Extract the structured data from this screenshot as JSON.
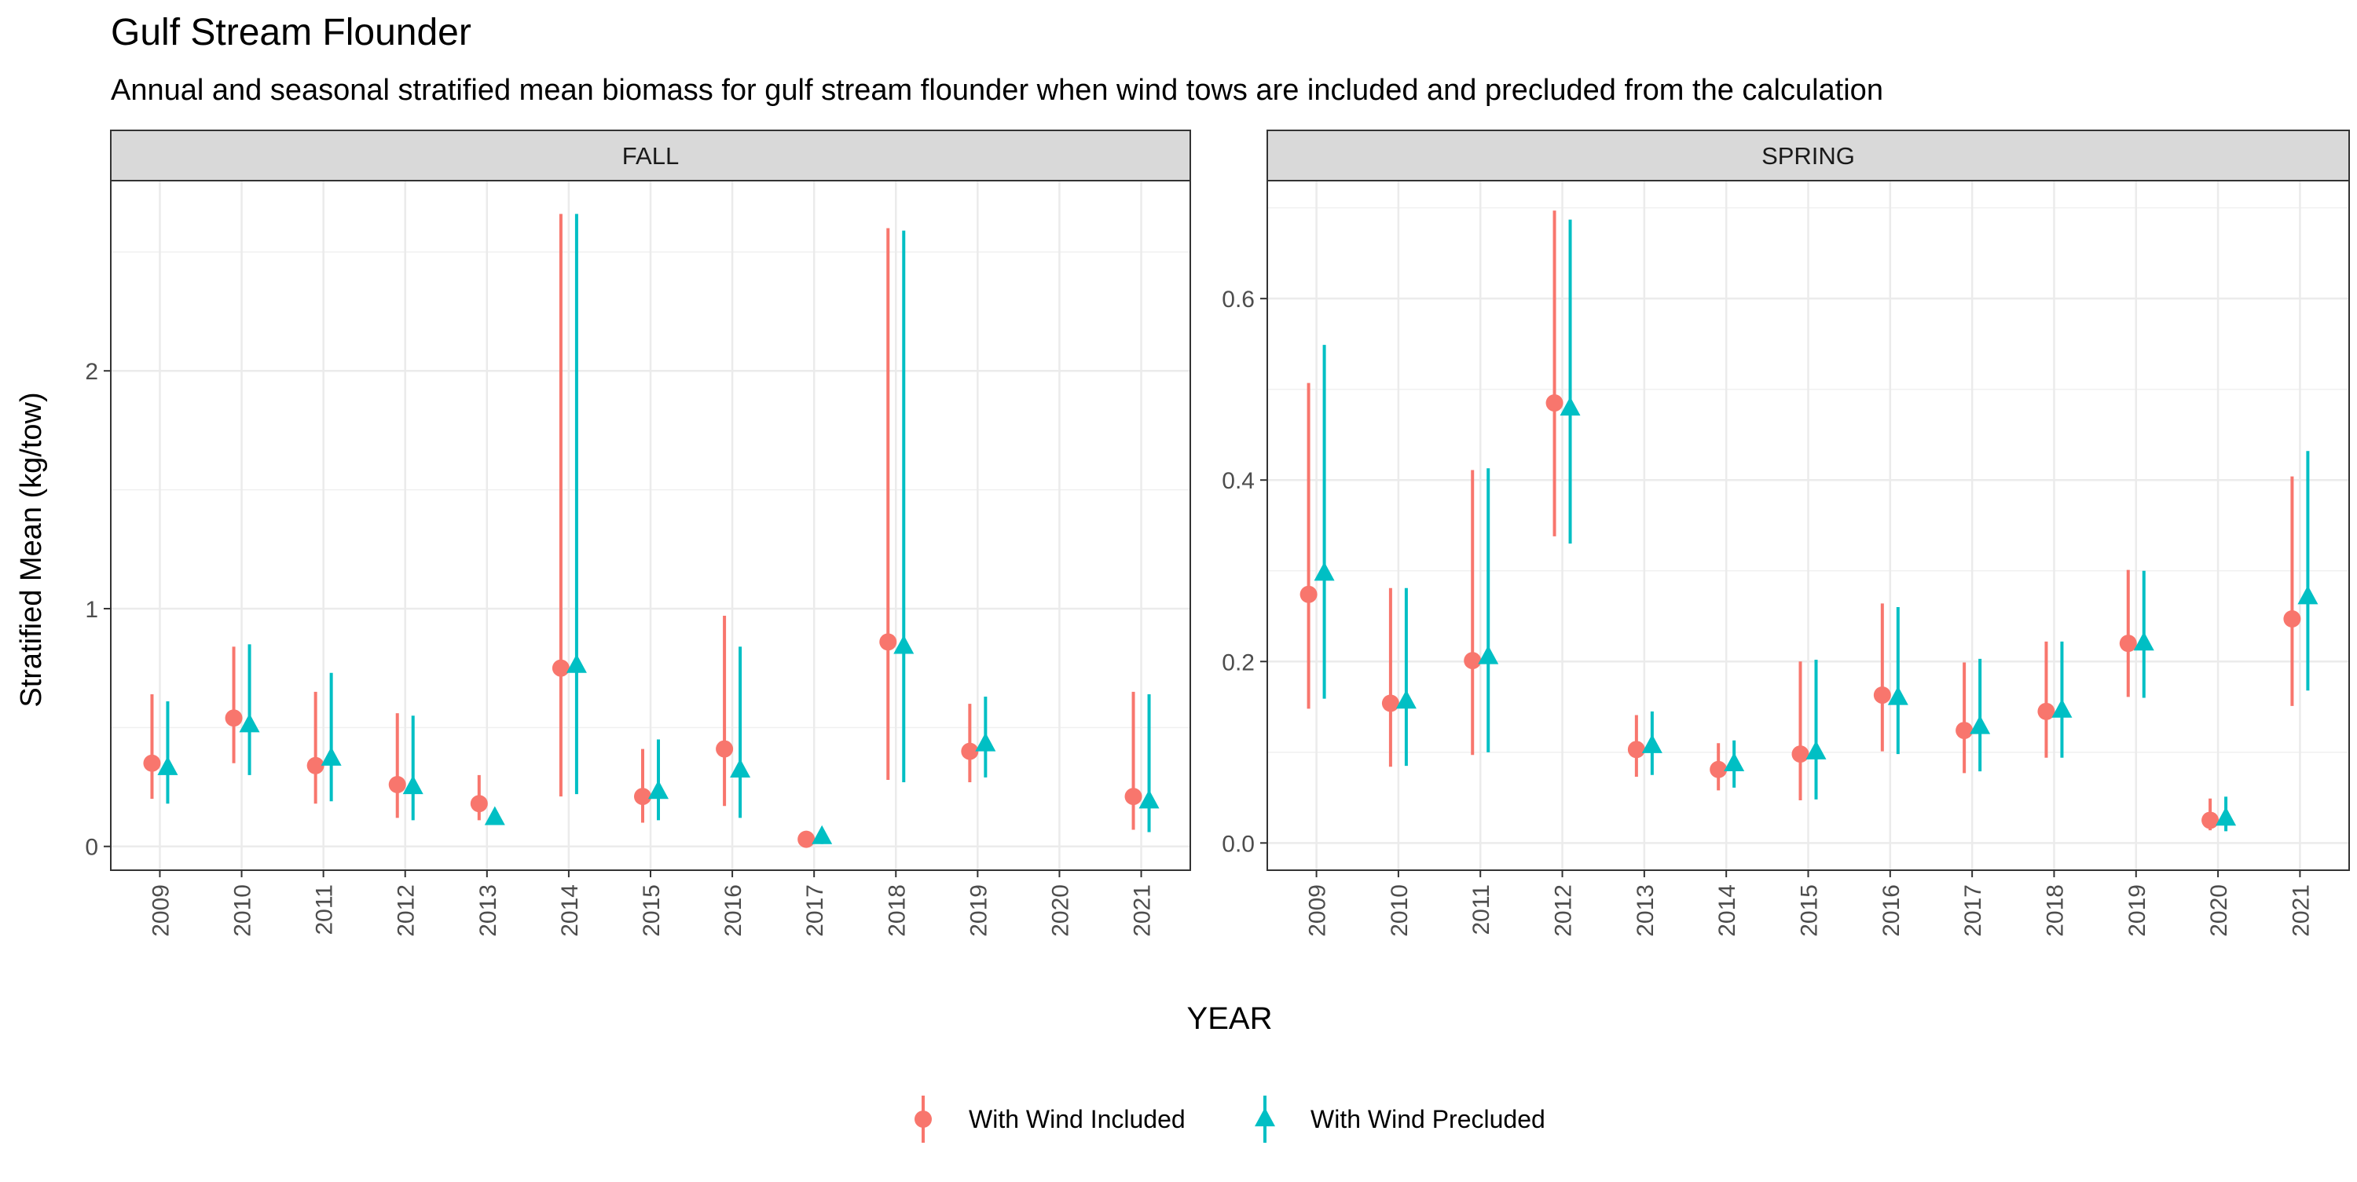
{
  "title": "Gulf Stream Flounder",
  "subtitle": "Annual and seasonal stratified mean biomass for gulf stream flounder when wind tows are included and precluded from the calculation",
  "chart_data": {
    "type": "scatter",
    "title": "Gulf Stream Flounder",
    "subtitle": "Annual and seasonal stratified mean biomass for gulf stream flounder when wind tows are included and precluded from the calculation",
    "xlabel": "YEAR",
    "ylabel": "Stratified Mean (kg/tow)",
    "colors": {
      "included": "#F8766D",
      "precluded": "#00BFC4"
    },
    "legend": {
      "position": "bottom",
      "entries": [
        {
          "name": "With Wind Included",
          "shape": "circle",
          "color": "#F8766D"
        },
        {
          "name": "With Wind Precluded",
          "shape": "triangle",
          "color": "#00BFC4"
        }
      ]
    },
    "years": [
      "2009",
      "2010",
      "2011",
      "2012",
      "2013",
      "2014",
      "2015",
      "2016",
      "2017",
      "2018",
      "2019",
      "2020",
      "2021"
    ],
    "panels": [
      {
        "name": "FALL",
        "ylim": [
          -0.1,
          2.8
        ],
        "yticks": [
          0,
          1,
          2
        ],
        "ytick_labels": [
          "0",
          "1",
          "2"
        ],
        "series": [
          {
            "name": "With Wind Included",
            "shape": "circle",
            "mean": [
              0.35,
              0.54,
              0.34,
              0.26,
              0.18,
              0.75,
              0.21,
              0.41,
              0.03,
              0.86,
              0.4,
              null,
              0.21
            ],
            "lower": [
              0.2,
              0.35,
              0.18,
              0.12,
              0.11,
              0.21,
              0.1,
              0.17,
              0.01,
              0.28,
              0.27,
              null,
              0.07
            ],
            "upper": [
              0.64,
              0.84,
              0.65,
              0.56,
              0.3,
              2.66,
              0.41,
              0.97,
              0.05,
              2.6,
              0.6,
              null,
              0.65
            ]
          },
          {
            "name": "With Wind Precluded",
            "shape": "triangle",
            "mean": [
              0.33,
              0.51,
              0.37,
              0.25,
              0.12,
              0.76,
              0.23,
              0.32,
              0.04,
              0.84,
              0.43,
              null,
              0.19
            ],
            "lower": [
              0.18,
              0.3,
              0.19,
              0.11,
              0.1,
              0.22,
              0.11,
              0.12,
              0.01,
              0.27,
              0.29,
              null,
              0.06
            ],
            "upper": [
              0.61,
              0.85,
              0.73,
              0.55,
              0.15,
              2.66,
              0.45,
              0.84,
              0.06,
              2.59,
              0.63,
              null,
              0.64
            ]
          }
        ]
      },
      {
        "name": "SPRING",
        "ylim": [
          -0.03,
          0.73
        ],
        "yticks": [
          0.0,
          0.2,
          0.4,
          0.6
        ],
        "ytick_labels": [
          "0.0",
          "0.2",
          "0.4",
          "0.6"
        ],
        "series": [
          {
            "name": "With Wind Included",
            "shape": "circle",
            "mean": [
              0.274,
              0.154,
              0.201,
              0.485,
              0.103,
              0.081,
              0.098,
              0.163,
              0.124,
              0.145,
              0.22,
              0.025,
              0.247
            ],
            "lower": [
              0.148,
              0.084,
              0.097,
              0.338,
              0.073,
              0.058,
              0.047,
              0.101,
              0.077,
              0.094,
              0.161,
              0.014,
              0.151
            ],
            "upper": [
              0.507,
              0.281,
              0.411,
              0.697,
              0.141,
              0.11,
              0.2,
              0.264,
              0.199,
              0.222,
              0.301,
              0.049,
              0.404
            ]
          },
          {
            "name": "With Wind Precluded",
            "shape": "triangle",
            "mean": [
              0.297,
              0.156,
              0.205,
              0.479,
              0.107,
              0.087,
              0.1,
              0.16,
              0.128,
              0.146,
              0.22,
              0.027,
              0.271
            ],
            "lower": [
              0.159,
              0.085,
              0.1,
              0.33,
              0.075,
              0.061,
              0.048,
              0.098,
              0.079,
              0.094,
              0.16,
              0.013,
              0.168
            ],
            "upper": [
              0.549,
              0.281,
              0.413,
              0.687,
              0.145,
              0.113,
              0.202,
              0.26,
              0.203,
              0.222,
              0.3,
              0.051,
              0.432
            ]
          }
        ]
      }
    ]
  }
}
